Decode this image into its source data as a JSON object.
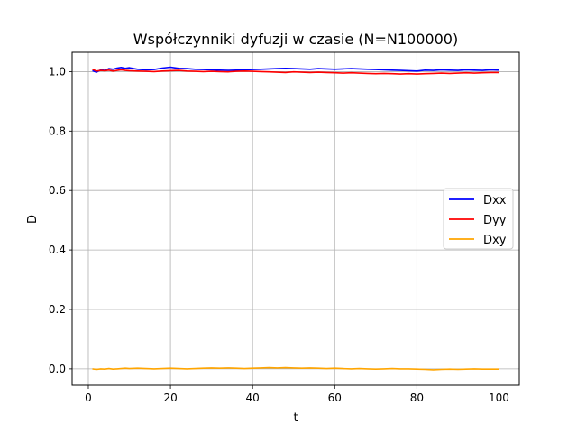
{
  "chart_data": {
    "type": "line",
    "title": "Współczynniki dyfuzji w czasie (N=N100000)",
    "xlabel": "t",
    "ylabel": "D",
    "xlim": [
      -3.95,
      104.95
    ],
    "ylim": [
      -0.055,
      1.065
    ],
    "xticks": [
      0,
      20,
      40,
      60,
      80,
      100
    ],
    "yticks": [
      0.0,
      0.2,
      0.4,
      0.6,
      0.8,
      1.0
    ],
    "xtick_labels": [
      "0",
      "20",
      "40",
      "60",
      "80",
      "100"
    ],
    "ytick_labels": [
      "0.0",
      "0.2",
      "0.4",
      "0.6",
      "0.8",
      "1.0"
    ],
    "grid": true,
    "legend_position": "center-right",
    "x": [
      1,
      2,
      3,
      4,
      5,
      6,
      7,
      8,
      9,
      10,
      12,
      14,
      16,
      18,
      20,
      22,
      24,
      26,
      28,
      30,
      32,
      34,
      36,
      38,
      40,
      42,
      44,
      46,
      48,
      50,
      52,
      54,
      56,
      58,
      60,
      62,
      64,
      66,
      68,
      70,
      72,
      74,
      76,
      78,
      80,
      82,
      84,
      86,
      88,
      90,
      92,
      94,
      96,
      98,
      100
    ],
    "series": [
      {
        "name": "Dxx",
        "color": "#0000ff",
        "values": [
          1.003,
          0.998,
          1.006,
          1.004,
          1.01,
          1.008,
          1.012,
          1.014,
          1.011,
          1.013,
          1.008,
          1.006,
          1.007,
          1.012,
          1.015,
          1.011,
          1.01,
          1.008,
          1.007,
          1.006,
          1.005,
          1.004,
          1.005,
          1.006,
          1.007,
          1.008,
          1.009,
          1.01,
          1.011,
          1.01,
          1.009,
          1.008,
          1.01,
          1.009,
          1.008,
          1.009,
          1.01,
          1.009,
          1.008,
          1.007,
          1.006,
          1.005,
          1.004,
          1.003,
          1.002,
          1.005,
          1.004,
          1.006,
          1.005,
          1.004,
          1.006,
          1.005,
          1.004,
          1.006,
          1.005
        ]
      },
      {
        "name": "Dyy",
        "color": "#ff0000",
        "values": [
          1.008,
          1.002,
          1.004,
          1.003,
          1.005,
          1.002,
          1.004,
          1.006,
          1.004,
          1.003,
          1.002,
          1.001,
          1.0,
          1.002,
          1.003,
          1.004,
          1.002,
          1.001,
          1.0,
          1.001,
          1.0,
          0.999,
          1.001,
          1.002,
          1.001,
          1.0,
          0.999,
          0.998,
          0.997,
          0.999,
          0.998,
          0.997,
          0.998,
          0.997,
          0.996,
          0.995,
          0.996,
          0.995,
          0.994,
          0.993,
          0.994,
          0.993,
          0.992,
          0.993,
          0.992,
          0.993,
          0.994,
          0.995,
          0.994,
          0.995,
          0.996,
          0.995,
          0.996,
          0.997,
          0.997
        ]
      },
      {
        "name": "Dxy",
        "color": "#ffa500",
        "values": [
          0.0,
          -0.002,
          0.0,
          -0.001,
          0.001,
          -0.001,
          0.0,
          0.001,
          0.002,
          0.001,
          0.002,
          0.001,
          0.0,
          0.001,
          0.002,
          0.001,
          0.0,
          0.001,
          0.002,
          0.003,
          0.002,
          0.003,
          0.002,
          0.001,
          0.002,
          0.003,
          0.004,
          0.003,
          0.004,
          0.003,
          0.002,
          0.003,
          0.002,
          0.001,
          0.002,
          0.001,
          0.0,
          0.001,
          0.0,
          -0.001,
          0.0,
          0.001,
          0.0,
          0.0,
          -0.001,
          -0.002,
          -0.003,
          -0.002,
          -0.001,
          -0.002,
          -0.001,
          0.0,
          -0.001,
          -0.001,
          -0.001
        ]
      }
    ]
  }
}
